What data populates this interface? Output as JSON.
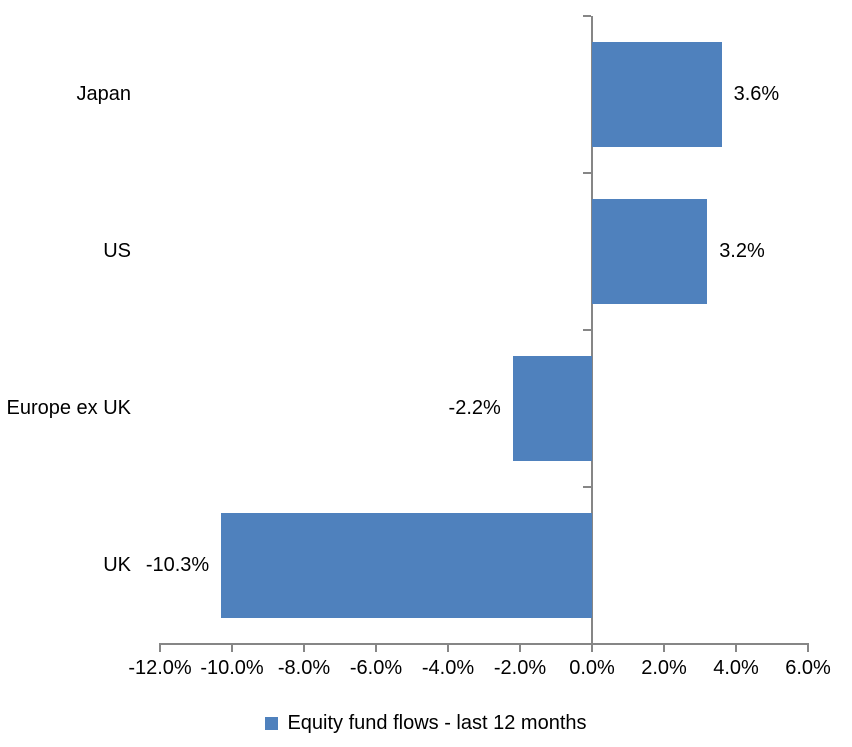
{
  "chart_data": {
    "type": "bar",
    "orientation": "horizontal",
    "title": "",
    "categories": [
      "Japan",
      "US",
      "Europe ex UK",
      "UK"
    ],
    "series": [
      {
        "name": "Equity fund flows - last 12 months",
        "values": [
          3.6,
          3.2,
          -2.2,
          -10.3
        ],
        "data_labels": [
          "3.6%",
          "3.2%",
          "-2.2%",
          "-10.3%"
        ]
      }
    ],
    "xlabel": "",
    "ylabel": "",
    "xlim": [
      -12,
      6
    ],
    "x_ticks": [
      -12,
      -10,
      -8,
      -6,
      -4,
      -2,
      0,
      2,
      4,
      6
    ],
    "x_tick_labels": [
      "-12.0%",
      "-10.0%",
      "-8.0%",
      "-6.0%",
      "-4.0%",
      "-2.0%",
      "0.0%",
      "2.0%",
      "4.0%",
      "6.0%"
    ],
    "grid": false,
    "legend_position": "bottom",
    "colors": {
      "bar": "#4f81bd",
      "axis": "#868686",
      "text": "#000000",
      "background": "#ffffff"
    }
  },
  "legend": {
    "label": "Equity fund flows - last 12 months"
  }
}
